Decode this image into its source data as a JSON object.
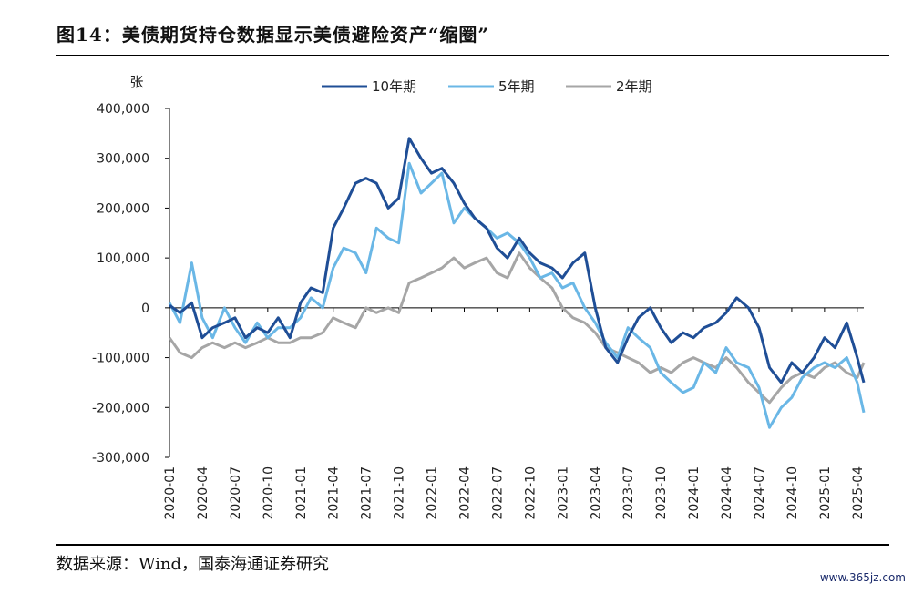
{
  "header": {
    "title": "图14：美债期货持仓数据显示美债避险资产“缩圈”"
  },
  "footer": {
    "source": "数据来源：Wind，国泰海通证券研究",
    "watermark": "www.365jz.com"
  },
  "colors": {
    "series_10y": "#1f4e96",
    "series_5y": "#6ab7e6",
    "series_2y": "#a6a6a6",
    "axis": "#000000"
  },
  "chart_data": {
    "type": "line",
    "title": "美债期货持仓数据显示美债避险资产“缩圈”",
    "ylabel": "张",
    "xlabel": "",
    "ylim": [
      -300000,
      400000
    ],
    "yticks": [
      400000,
      300000,
      200000,
      100000,
      0,
      -100000,
      -200000,
      -300000
    ],
    "ytick_labels": [
      "400,000",
      "300,000",
      "200,000",
      "100,000",
      "0",
      "-100,000",
      "-200,000",
      "-300,000"
    ],
    "x_range": [
      2020.0,
      2025.3
    ],
    "xticks": [
      "2020-01",
      "2020-04",
      "2020-07",
      "2020-10",
      "2021-01",
      "2021-04",
      "2021-07",
      "2021-10",
      "2022-01",
      "2022-04",
      "2022-07",
      "2022-10",
      "2023-01",
      "2023-04",
      "2023-07",
      "2023-10",
      "2024-01",
      "2024-04",
      "2024-07",
      "2024-10",
      "2025-01",
      "2025-04"
    ],
    "legend": [
      "10年期",
      "5年期",
      "2年期"
    ],
    "legend_position": "top-center",
    "series": [
      {
        "name": "10年期",
        "x": [
          2020.0,
          2020.08,
          2020.17,
          2020.25,
          2020.33,
          2020.42,
          2020.5,
          2020.58,
          2020.67,
          2020.75,
          2020.83,
          2020.92,
          2021.0,
          2021.08,
          2021.17,
          2021.25,
          2021.33,
          2021.42,
          2021.5,
          2021.58,
          2021.67,
          2021.75,
          2021.83,
          2021.92,
          2022.0,
          2022.08,
          2022.17,
          2022.25,
          2022.33,
          2022.42,
          2022.5,
          2022.58,
          2022.67,
          2022.75,
          2022.83,
          2022.92,
          2023.0,
          2023.08,
          2023.17,
          2023.25,
          2023.33,
          2023.42,
          2023.5,
          2023.58,
          2023.67,
          2023.75,
          2023.83,
          2023.92,
          2024.0,
          2024.08,
          2024.17,
          2024.25,
          2024.33,
          2024.42,
          2024.5,
          2024.58,
          2024.67,
          2024.75,
          2024.83,
          2024.92,
          2025.0,
          2025.08,
          2025.17,
          2025.25,
          2025.3
        ],
        "values": [
          5000,
          -10000,
          10000,
          -60000,
          -40000,
          -30000,
          -20000,
          -60000,
          -40000,
          -50000,
          -20000,
          -60000,
          10000,
          40000,
          30000,
          160000,
          200000,
          250000,
          260000,
          250000,
          200000,
          220000,
          340000,
          300000,
          270000,
          280000,
          250000,
          210000,
          180000,
          160000,
          120000,
          100000,
          140000,
          110000,
          90000,
          80000,
          60000,
          90000,
          110000,
          0,
          -80000,
          -110000,
          -60000,
          -20000,
          0,
          -40000,
          -70000,
          -50000,
          -60000,
          -40000,
          -30000,
          -10000,
          20000,
          0,
          -40000,
          -120000,
          -150000,
          -110000,
          -130000,
          -100000,
          -60000,
          -80000,
          -30000,
          -100000,
          -150000
        ]
      },
      {
        "name": "5年期",
        "x": [
          2020.0,
          2020.08,
          2020.17,
          2020.25,
          2020.33,
          2020.42,
          2020.5,
          2020.58,
          2020.67,
          2020.75,
          2020.83,
          2020.92,
          2021.0,
          2021.08,
          2021.17,
          2021.25,
          2021.33,
          2021.42,
          2021.5,
          2021.58,
          2021.67,
          2021.75,
          2021.83,
          2021.92,
          2022.0,
          2022.08,
          2022.17,
          2022.25,
          2022.33,
          2022.42,
          2022.5,
          2022.58,
          2022.67,
          2022.75,
          2022.83,
          2022.92,
          2023.0,
          2023.08,
          2023.17,
          2023.25,
          2023.33,
          2023.42,
          2023.5,
          2023.58,
          2023.67,
          2023.75,
          2023.83,
          2023.92,
          2024.0,
          2024.08,
          2024.17,
          2024.25,
          2024.33,
          2024.42,
          2024.5,
          2024.58,
          2024.67,
          2024.75,
          2024.83,
          2024.92,
          2025.0,
          2025.08,
          2025.17,
          2025.25,
          2025.3
        ],
        "values": [
          10000,
          -30000,
          90000,
          -20000,
          -60000,
          0,
          -40000,
          -70000,
          -30000,
          -60000,
          -40000,
          -40000,
          -20000,
          20000,
          0,
          80000,
          120000,
          110000,
          70000,
          160000,
          140000,
          130000,
          290000,
          230000,
          250000,
          270000,
          170000,
          200000,
          180000,
          160000,
          140000,
          150000,
          130000,
          100000,
          60000,
          70000,
          40000,
          50000,
          0,
          -30000,
          -70000,
          -100000,
          -40000,
          -60000,
          -80000,
          -130000,
          -150000,
          -170000,
          -160000,
          -110000,
          -130000,
          -80000,
          -110000,
          -120000,
          -160000,
          -240000,
          -200000,
          -180000,
          -140000,
          -120000,
          -110000,
          -120000,
          -100000,
          -150000,
          -210000
        ]
      },
      {
        "name": "2年期",
        "x": [
          2020.0,
          2020.08,
          2020.17,
          2020.25,
          2020.33,
          2020.42,
          2020.5,
          2020.58,
          2020.67,
          2020.75,
          2020.83,
          2020.92,
          2021.0,
          2021.08,
          2021.17,
          2021.25,
          2021.33,
          2021.42,
          2021.5,
          2021.58,
          2021.67,
          2021.75,
          2021.83,
          2021.92,
          2022.0,
          2022.08,
          2022.17,
          2022.25,
          2022.33,
          2022.42,
          2022.5,
          2022.58,
          2022.67,
          2022.75,
          2022.83,
          2022.92,
          2023.0,
          2023.08,
          2023.17,
          2023.25,
          2023.33,
          2023.42,
          2023.5,
          2023.58,
          2023.67,
          2023.75,
          2023.83,
          2023.92,
          2024.0,
          2024.08,
          2024.17,
          2024.25,
          2024.33,
          2024.42,
          2024.5,
          2024.58,
          2024.67,
          2024.75,
          2024.83,
          2024.92,
          2025.0,
          2025.08,
          2025.17,
          2025.25,
          2025.3
        ],
        "values": [
          -60000,
          -90000,
          -100000,
          -80000,
          -70000,
          -80000,
          -70000,
          -80000,
          -70000,
          -60000,
          -70000,
          -70000,
          -60000,
          -60000,
          -50000,
          -20000,
          -30000,
          -40000,
          0,
          -10000,
          0,
          -10000,
          50000,
          60000,
          70000,
          80000,
          100000,
          80000,
          90000,
          100000,
          70000,
          60000,
          110000,
          80000,
          60000,
          40000,
          0,
          -20000,
          -30000,
          -50000,
          -80000,
          -90000,
          -100000,
          -110000,
          -130000,
          -120000,
          -130000,
          -110000,
          -100000,
          -110000,
          -120000,
          -100000,
          -120000,
          -150000,
          -170000,
          -190000,
          -160000,
          -140000,
          -130000,
          -140000,
          -120000,
          -110000,
          -130000,
          -140000,
          -110000
        ]
      }
    ]
  }
}
